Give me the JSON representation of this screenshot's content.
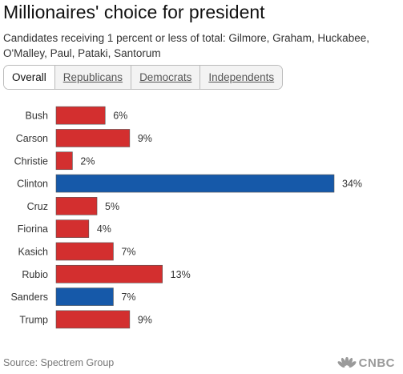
{
  "title": "Millionaires' choice for president",
  "subtitle": "Candidates receiving 1 percent or less of total: Gilmore, Graham, Huckabee, O'Malley, Paul, Pataki, Santorum",
  "tabs": [
    "Overall",
    "Republicans",
    "Democrats",
    "Independents"
  ],
  "source": "Source: Spectrem Group",
  "logo": {
    "text": "CNBC",
    "icon": "nbc-peacock-icon"
  },
  "colors": {
    "republican": "#d32f2f",
    "democrat": "#1659a9"
  },
  "chart_data": {
    "type": "bar",
    "orientation": "horizontal",
    "categories": [
      "Bush",
      "Carson",
      "Christie",
      "Clinton",
      "Cruz",
      "Fiorina",
      "Kasich",
      "Rubio",
      "Sanders",
      "Trump"
    ],
    "values": [
      6,
      9,
      2,
      34,
      5,
      4,
      7,
      13,
      7,
      9
    ],
    "labels": [
      "6%",
      "9%",
      "2%",
      "34%",
      "5%",
      "4%",
      "7%",
      "13%",
      "7%",
      "9%"
    ],
    "party": [
      "republican",
      "republican",
      "republican",
      "democrat",
      "republican",
      "republican",
      "republican",
      "republican",
      "democrat",
      "republican"
    ],
    "xlim": [
      0,
      34
    ],
    "grid": false,
    "legend": "none"
  }
}
